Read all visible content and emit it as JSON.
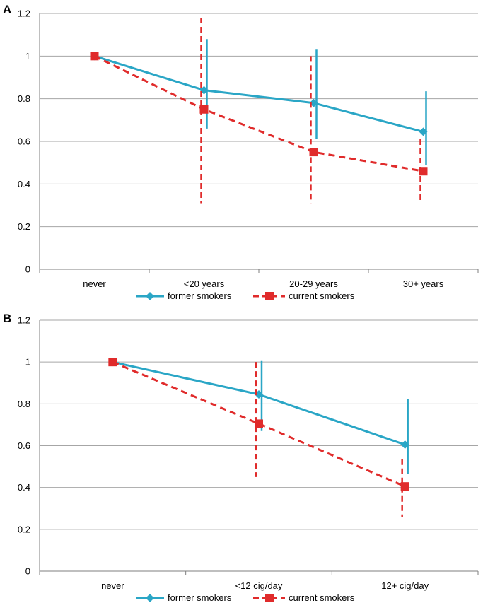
{
  "colors": {
    "former": "#2aa6c6",
    "current": "#e02b2b",
    "grid": "#a6a6a6",
    "axis": "#7f7f7f"
  },
  "legend": {
    "former_label": "former smokers",
    "current_label": "current smokers"
  },
  "chart_data": [
    {
      "type": "line",
      "panel": "A",
      "categories": [
        "never",
        "<20 years",
        "20-29 years",
        "30+ years"
      ],
      "ylim": [
        0,
        1.2
      ],
      "yticks": [
        "0",
        "0.2",
        "0.4",
        "0.6",
        "0.8",
        "1",
        "1.2"
      ],
      "grid": true,
      "legend_position": "bottom",
      "series": [
        {
          "name": "former smokers",
          "key": "former",
          "values": [
            1.0,
            0.84,
            0.78,
            0.645
          ],
          "lower": [
            null,
            0.66,
            0.61,
            0.49
          ],
          "upper": [
            null,
            1.08,
            1.03,
            0.835
          ]
        },
        {
          "name": "current smokers",
          "key": "current",
          "values": [
            1.0,
            0.75,
            0.55,
            0.46
          ],
          "lower": [
            null,
            0.31,
            0.31,
            0.32
          ],
          "upper": [
            null,
            1.18,
            1.0,
            0.61
          ]
        }
      ]
    },
    {
      "type": "line",
      "panel": "B",
      "categories": [
        "never",
        "<12 cig/day",
        "12+ cig/day"
      ],
      "ylim": [
        0,
        1.2
      ],
      "yticks": [
        "0",
        "0.2",
        "0.4",
        "0.6",
        "0.8",
        "1",
        "1.2"
      ],
      "grid": true,
      "legend_position": "bottom",
      "series": [
        {
          "name": "former smokers",
          "key": "former",
          "values": [
            1.0,
            0.845,
            0.605
          ],
          "lower": [
            null,
            0.67,
            0.465
          ],
          "upper": [
            null,
            1.005,
            0.825
          ]
        },
        {
          "name": "current smokers",
          "key": "current",
          "values": [
            1.0,
            0.705,
            0.405
          ],
          "lower": [
            null,
            0.45,
            0.26
          ],
          "upper": [
            null,
            1.0,
            0.535
          ]
        }
      ]
    }
  ]
}
